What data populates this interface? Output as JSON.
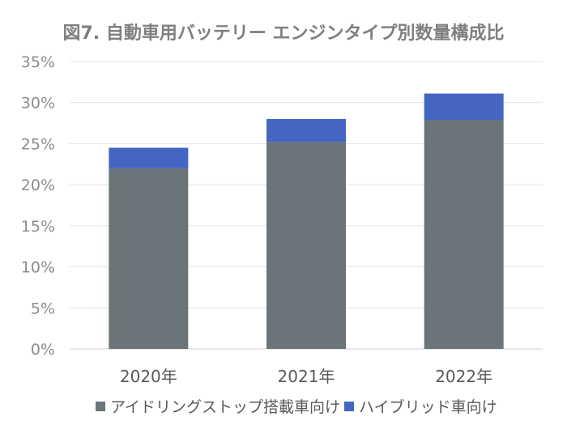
{
  "chart_data": {
    "type": "bar",
    "stacked": true,
    "title": "図7. 自動車用バッテリー エンジンタイプ別数量構成比",
    "categories": [
      "2020年",
      "2021年",
      "2022年"
    ],
    "series": [
      {
        "name": "アイドリングストップ搭載車向け",
        "color": "#6b7479",
        "values": [
          22.0,
          25.2,
          27.9
        ]
      },
      {
        "name": "ハイブリッド車向け",
        "color": "#4466c2",
        "values": [
          2.5,
          2.8,
          3.2
        ]
      }
    ],
    "ylim": [
      0,
      35
    ],
    "yticks": [
      "0%",
      "5%",
      "10%",
      "15%",
      "20%",
      "25%",
      "30%",
      "35%"
    ],
    "ytick_values": [
      0,
      5,
      10,
      15,
      20,
      25,
      30,
      35
    ],
    "grid": true,
    "legend_position": "bottom"
  }
}
